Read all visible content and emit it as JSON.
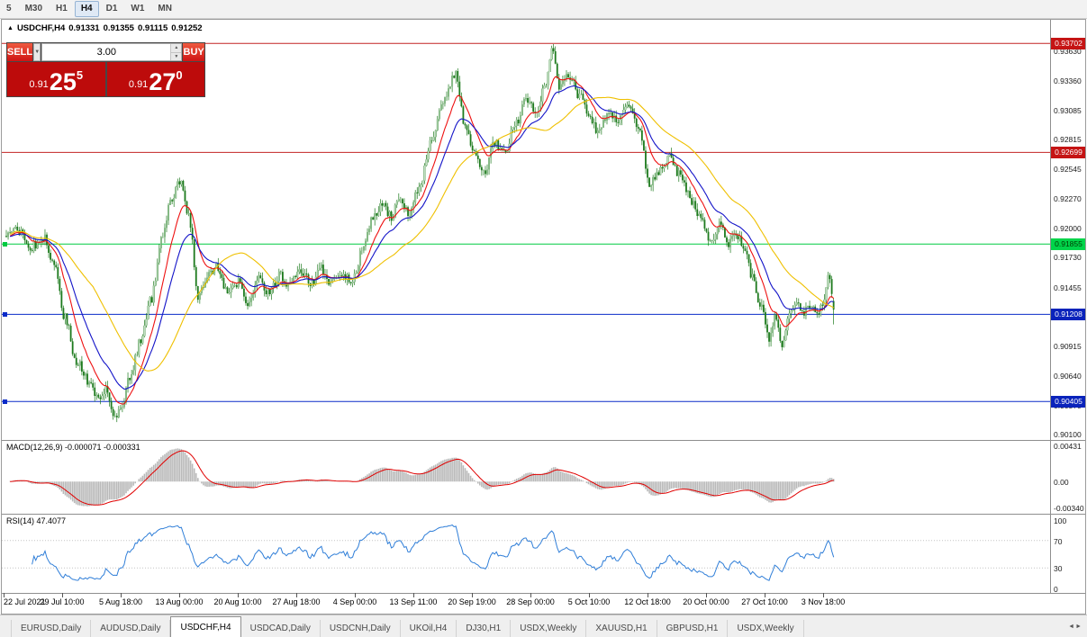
{
  "toolbar": {
    "timeframes": [
      {
        "label": "5",
        "active": false
      },
      {
        "label": "M30",
        "active": false
      },
      {
        "label": "H1",
        "active": false
      },
      {
        "label": "H4",
        "active": true
      },
      {
        "label": "D1",
        "active": false
      },
      {
        "label": "W1",
        "active": false
      },
      {
        "label": "MN",
        "active": false
      }
    ]
  },
  "icons": {
    "chart_collapse": "▲",
    "dropdown_arrow": "▼",
    "spin_up": "▲",
    "spin_down": "▼",
    "tab_scroll": "◄►"
  },
  "chart_header": {
    "symbol": "USDCHF,H4",
    "open": "0.91331",
    "high": "0.91355",
    "low": "0.91115",
    "close": "0.91252"
  },
  "trade_panel": {
    "sell_label": "SELL",
    "buy_label": "BUY",
    "volume": "3.00",
    "sell_price": {
      "prefix": "0.91",
      "big": "25",
      "sup": "5"
    },
    "buy_price": {
      "prefix": "0.91",
      "big": "27",
      "sup": "0"
    }
  },
  "price_axis": {
    "labels": [
      "0.93630",
      "0.93360",
      "0.93085",
      "0.92815",
      "0.92545",
      "0.92270",
      "0.92000",
      "0.91730",
      "0.91455",
      "0.91185",
      "0.90915",
      "0.90640",
      "0.90370",
      "0.90100"
    ]
  },
  "hlines": [
    {
      "price": 0.93702,
      "label": "0.93702",
      "color": "#c22424",
      "badge_bg": "#c51414",
      "badge_fg": "#ffffff",
      "handles": false
    },
    {
      "price": 0.92699,
      "label": "0.92699",
      "color": "#c22424",
      "badge_bg": "#c51414",
      "badge_fg": "#ffffff",
      "handles": false
    },
    {
      "price": 0.91855,
      "label": "0.91855",
      "color": "#00ca41",
      "badge_bg": "#00d44a",
      "badge_fg": "#003a00",
      "handles": true
    },
    {
      "price": 0.91208,
      "label": "0.91208",
      "color": "#0a2bc8",
      "badge_bg": "#0a23bb",
      "badge_fg": "#ffffff",
      "handles": true
    },
    {
      "price": 0.90405,
      "label": "0.90405",
      "color": "#0a2bc8",
      "badge_bg": "#0a23bb",
      "badge_fg": "#ffffff",
      "handles": true
    }
  ],
  "macd_panel": {
    "label": "MACD(12,26,9) -0.000071 -0.000331",
    "axis_top": "0.00431",
    "axis_zero": "0.00",
    "axis_bottom": "-0.00340"
  },
  "rsi_panel": {
    "label": "RSI(14) 47.4077",
    "axis": [
      100,
      70,
      30,
      0
    ],
    "levels": [
      70,
      30
    ]
  },
  "time_axis": {
    "labels": [
      "22 Jul 2021",
      "29 Jul 10:00",
      "5 Aug 18:00",
      "13 Aug 00:00",
      "20 Aug 10:00",
      "27 Aug 18:00",
      "4 Sep 00:00",
      "13 Sep 11:00",
      "20 Sep 19:00",
      "28 Sep 00:00",
      "5 Oct 10:00",
      "12 Oct 18:00",
      "20 Oct 00:00",
      "27 Oct 10:00",
      "3 Nov 18:00"
    ]
  },
  "tabs": {
    "items": [
      "EURUSD,Daily",
      "AUDUSD,Daily",
      "USDCHF,H4",
      "USDCAD,Daily",
      "USDCNH,Daily",
      "UKOil,H4",
      "DJ30,H1",
      "USDX,Weekly",
      "XAUUSD,H1",
      "GBPUSD,H1",
      "USDX,Weekly"
    ],
    "active_index": 2
  },
  "chart_data": {
    "type": "candlestick",
    "symbol": "USDCHF",
    "timeframe": "H4",
    "title": "USDCHF,H4",
    "last_quote": {
      "open": 0.91331,
      "high": 0.91355,
      "low": 0.91115,
      "close": 0.91252,
      "sell": 0.91255,
      "buy": 0.9127
    },
    "y_range": [
      0.9006,
      0.9382
    ],
    "n_candles": 450,
    "x_labels": [
      "22 Jul 2021",
      "29 Jul 10:00",
      "5 Aug 18:00",
      "13 Aug 00:00",
      "20 Aug 10:00",
      "27 Aug 18:00",
      "4 Sep 00:00",
      "13 Sep 11:00",
      "20 Sep 19:00",
      "28 Sep 00:00",
      "5 Oct 10:00",
      "12 Oct 18:00",
      "20 Oct 00:00",
      "27 Oct 10:00",
      "3 Nov 18:00"
    ],
    "horizontal_levels": [
      0.93702,
      0.92699,
      0.91855,
      0.91208,
      0.90405
    ],
    "moving_averages": [
      {
        "period": 12,
        "type": "ema",
        "color": "#ee1111"
      },
      {
        "period": 24,
        "type": "ema",
        "color": "#1414c8"
      },
      {
        "period": 48,
        "type": "sma",
        "color": "#efc000"
      }
    ],
    "macd": {
      "fast": 12,
      "slow": 26,
      "signal": 9,
      "value": -7.1e-05,
      "signal_value": -0.000331,
      "axis_max": 0.00431,
      "axis_min": -0.0034
    },
    "rsi": {
      "period": 14,
      "value": 47.4077
    },
    "price_path_anchors": [
      [
        0.0,
        0.9193
      ],
      [
        0.012,
        0.92
      ],
      [
        0.03,
        0.9183
      ],
      [
        0.045,
        0.9192
      ],
      [
        0.058,
        0.9165
      ],
      [
        0.07,
        0.912
      ],
      [
        0.085,
        0.9078
      ],
      [
        0.1,
        0.9058
      ],
      [
        0.112,
        0.904
      ],
      [
        0.12,
        0.9052
      ],
      [
        0.13,
        0.9024
      ],
      [
        0.14,
        0.9038
      ],
      [
        0.15,
        0.9065
      ],
      [
        0.163,
        0.9098
      ],
      [
        0.175,
        0.9135
      ],
      [
        0.188,
        0.919
      ],
      [
        0.2,
        0.9228
      ],
      [
        0.21,
        0.9242
      ],
      [
        0.22,
        0.9215
      ],
      [
        0.232,
        0.9135
      ],
      [
        0.242,
        0.9155
      ],
      [
        0.255,
        0.9165
      ],
      [
        0.268,
        0.9138
      ],
      [
        0.28,
        0.915
      ],
      [
        0.292,
        0.9132
      ],
      [
        0.305,
        0.9155
      ],
      [
        0.318,
        0.914
      ],
      [
        0.33,
        0.9158
      ],
      [
        0.342,
        0.9148
      ],
      [
        0.355,
        0.9162
      ],
      [
        0.368,
        0.915
      ],
      [
        0.38,
        0.9163
      ],
      [
        0.392,
        0.9148
      ],
      [
        0.405,
        0.9158
      ],
      [
        0.418,
        0.9152
      ],
      [
        0.43,
        0.9178
      ],
      [
        0.443,
        0.9208
      ],
      [
        0.455,
        0.9225
      ],
      [
        0.465,
        0.921
      ],
      [
        0.475,
        0.9228
      ],
      [
        0.487,
        0.9215
      ],
      [
        0.5,
        0.924
      ],
      [
        0.515,
        0.9285
      ],
      [
        0.53,
        0.932
      ],
      [
        0.543,
        0.9342
      ],
      [
        0.553,
        0.93
      ],
      [
        0.565,
        0.9272
      ],
      [
        0.578,
        0.9253
      ],
      [
        0.59,
        0.9278
      ],
      [
        0.602,
        0.9268
      ],
      [
        0.615,
        0.9295
      ],
      [
        0.628,
        0.9318
      ],
      [
        0.64,
        0.931
      ],
      [
        0.652,
        0.933
      ],
      [
        0.66,
        0.9368
      ],
      [
        0.668,
        0.933
      ],
      [
        0.68,
        0.9342
      ],
      [
        0.692,
        0.9322
      ],
      [
        0.703,
        0.9308
      ],
      [
        0.715,
        0.9288
      ],
      [
        0.728,
        0.9305
      ],
      [
        0.74,
        0.9298
      ],
      [
        0.752,
        0.9315
      ],
      [
        0.765,
        0.929
      ],
      [
        0.778,
        0.924
      ],
      [
        0.79,
        0.9252
      ],
      [
        0.802,
        0.9265
      ],
      [
        0.815,
        0.9248
      ],
      [
        0.828,
        0.9225
      ],
      [
        0.84,
        0.9208
      ],
      [
        0.852,
        0.9188
      ],
      [
        0.862,
        0.9205
      ],
      [
        0.872,
        0.9185
      ],
      [
        0.882,
        0.9196
      ],
      [
        0.892,
        0.9178
      ],
      [
        0.902,
        0.9155
      ],
      [
        0.912,
        0.9128
      ],
      [
        0.922,
        0.9098
      ],
      [
        0.93,
        0.9118
      ],
      [
        0.938,
        0.9092
      ],
      [
        0.946,
        0.912
      ],
      [
        0.955,
        0.9132
      ],
      [
        0.963,
        0.9122
      ],
      [
        0.971,
        0.913
      ],
      [
        0.979,
        0.912
      ],
      [
        0.987,
        0.9128
      ],
      [
        0.994,
        0.9158
      ],
      [
        1.0,
        0.9125
      ]
    ]
  }
}
